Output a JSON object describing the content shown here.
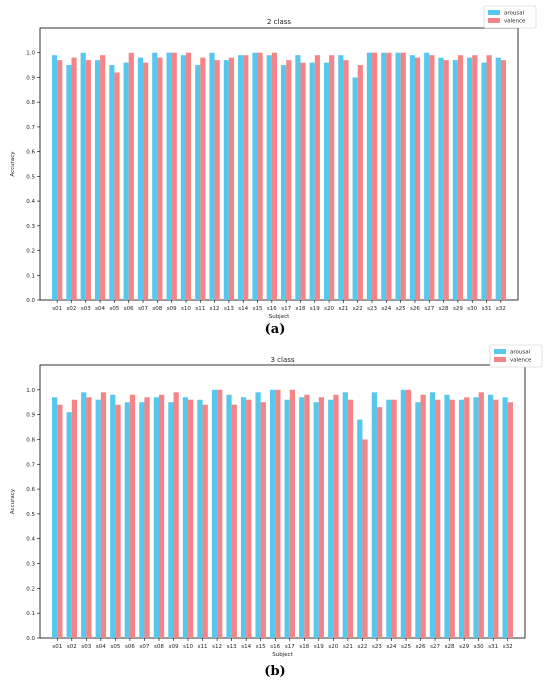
{
  "colors": {
    "arousal": "#57c8ec",
    "valence": "#f48486"
  },
  "captions": {
    "a": "(a)",
    "b": "(b)"
  },
  "chart_data": [
    {
      "type": "bar",
      "title": "2 class",
      "xlabel": "Subject",
      "ylabel": "Accuracy",
      "ylim": [
        0,
        1.1
      ],
      "yticks": [
        "0.0",
        "0.1",
        "0.2",
        "0.3",
        "0.4",
        "0.5",
        "0.6",
        "0.7",
        "0.8",
        "0.9",
        "1.0"
      ],
      "legend_position": "top-right",
      "categories": [
        "s01",
        "s02",
        "s03",
        "s04",
        "s05",
        "s06",
        "s07",
        "s08",
        "s09",
        "s10",
        "s11",
        "s12",
        "s13",
        "s14",
        "s15",
        "s16",
        "s17",
        "s18",
        "s19",
        "s20",
        "s21",
        "s22",
        "s23",
        "s24",
        "s25",
        "s26",
        "s27",
        "s28",
        "s29",
        "s30",
        "s31",
        "s32"
      ],
      "series": [
        {
          "name": "arousal",
          "values": [
            0.99,
            0.95,
            1.0,
            0.97,
            0.95,
            0.96,
            0.98,
            1.0,
            1.0,
            0.99,
            0.95,
            1.0,
            0.97,
            0.99,
            1.0,
            0.99,
            0.95,
            0.99,
            0.96,
            0.96,
            0.99,
            0.9,
            1.0,
            1.0,
            1.0,
            0.99,
            1.0,
            0.98,
            0.97,
            0.98,
            0.96,
            0.98
          ]
        },
        {
          "name": "valence",
          "values": [
            0.97,
            0.98,
            0.97,
            0.99,
            0.92,
            1.0,
            0.96,
            0.98,
            1.0,
            1.0,
            0.98,
            0.97,
            0.98,
            0.99,
            1.0,
            1.0,
            0.97,
            0.96,
            0.99,
            0.99,
            0.97,
            0.95,
            1.0,
            1.0,
            1.0,
            0.98,
            0.99,
            0.97,
            0.99,
            0.99,
            0.99,
            0.97
          ]
        }
      ]
    },
    {
      "type": "bar",
      "title": "3 class",
      "xlabel": "Subject",
      "ylabel": "Accuracy",
      "ylim": [
        0,
        1.1
      ],
      "yticks": [
        "0.0",
        "0.1",
        "0.2",
        "0.3",
        "0.4",
        "0.5",
        "0.6",
        "0.7",
        "0.8",
        "0.9",
        "1.0"
      ],
      "legend_position": "top-right",
      "categories": [
        "s01",
        "s02",
        "s03",
        "s04",
        "s05",
        "s06",
        "s07",
        "s08",
        "s09",
        "s10",
        "s11",
        "s12",
        "s13",
        "s14",
        "s15",
        "s16",
        "s17",
        "s18",
        "s19",
        "s20",
        "s21",
        "s22",
        "s23",
        "s24",
        "s25",
        "s26",
        "s27",
        "s28",
        "s29",
        "s30",
        "s31",
        "s32"
      ],
      "series": [
        {
          "name": "arousal",
          "values": [
            0.97,
            0.91,
            0.99,
            0.96,
            0.98,
            0.95,
            0.95,
            0.97,
            0.95,
            0.97,
            0.96,
            1.0,
            0.98,
            0.97,
            0.99,
            1.0,
            0.96,
            0.97,
            0.95,
            0.96,
            0.99,
            0.88,
            0.99,
            0.96,
            1.0,
            0.95,
            0.99,
            0.98,
            0.96,
            0.97,
            0.98,
            0.97
          ]
        },
        {
          "name": "valence",
          "values": [
            0.94,
            0.96,
            0.97,
            0.99,
            0.94,
            0.98,
            0.97,
            0.98,
            0.99,
            0.96,
            0.94,
            1.0,
            0.94,
            0.96,
            0.95,
            1.0,
            1.0,
            0.98,
            0.97,
            0.98,
            0.96,
            0.8,
            0.93,
            0.96,
            1.0,
            0.98,
            0.96,
            0.96,
            0.97,
            0.99,
            0.96,
            0.95
          ]
        }
      ]
    }
  ]
}
